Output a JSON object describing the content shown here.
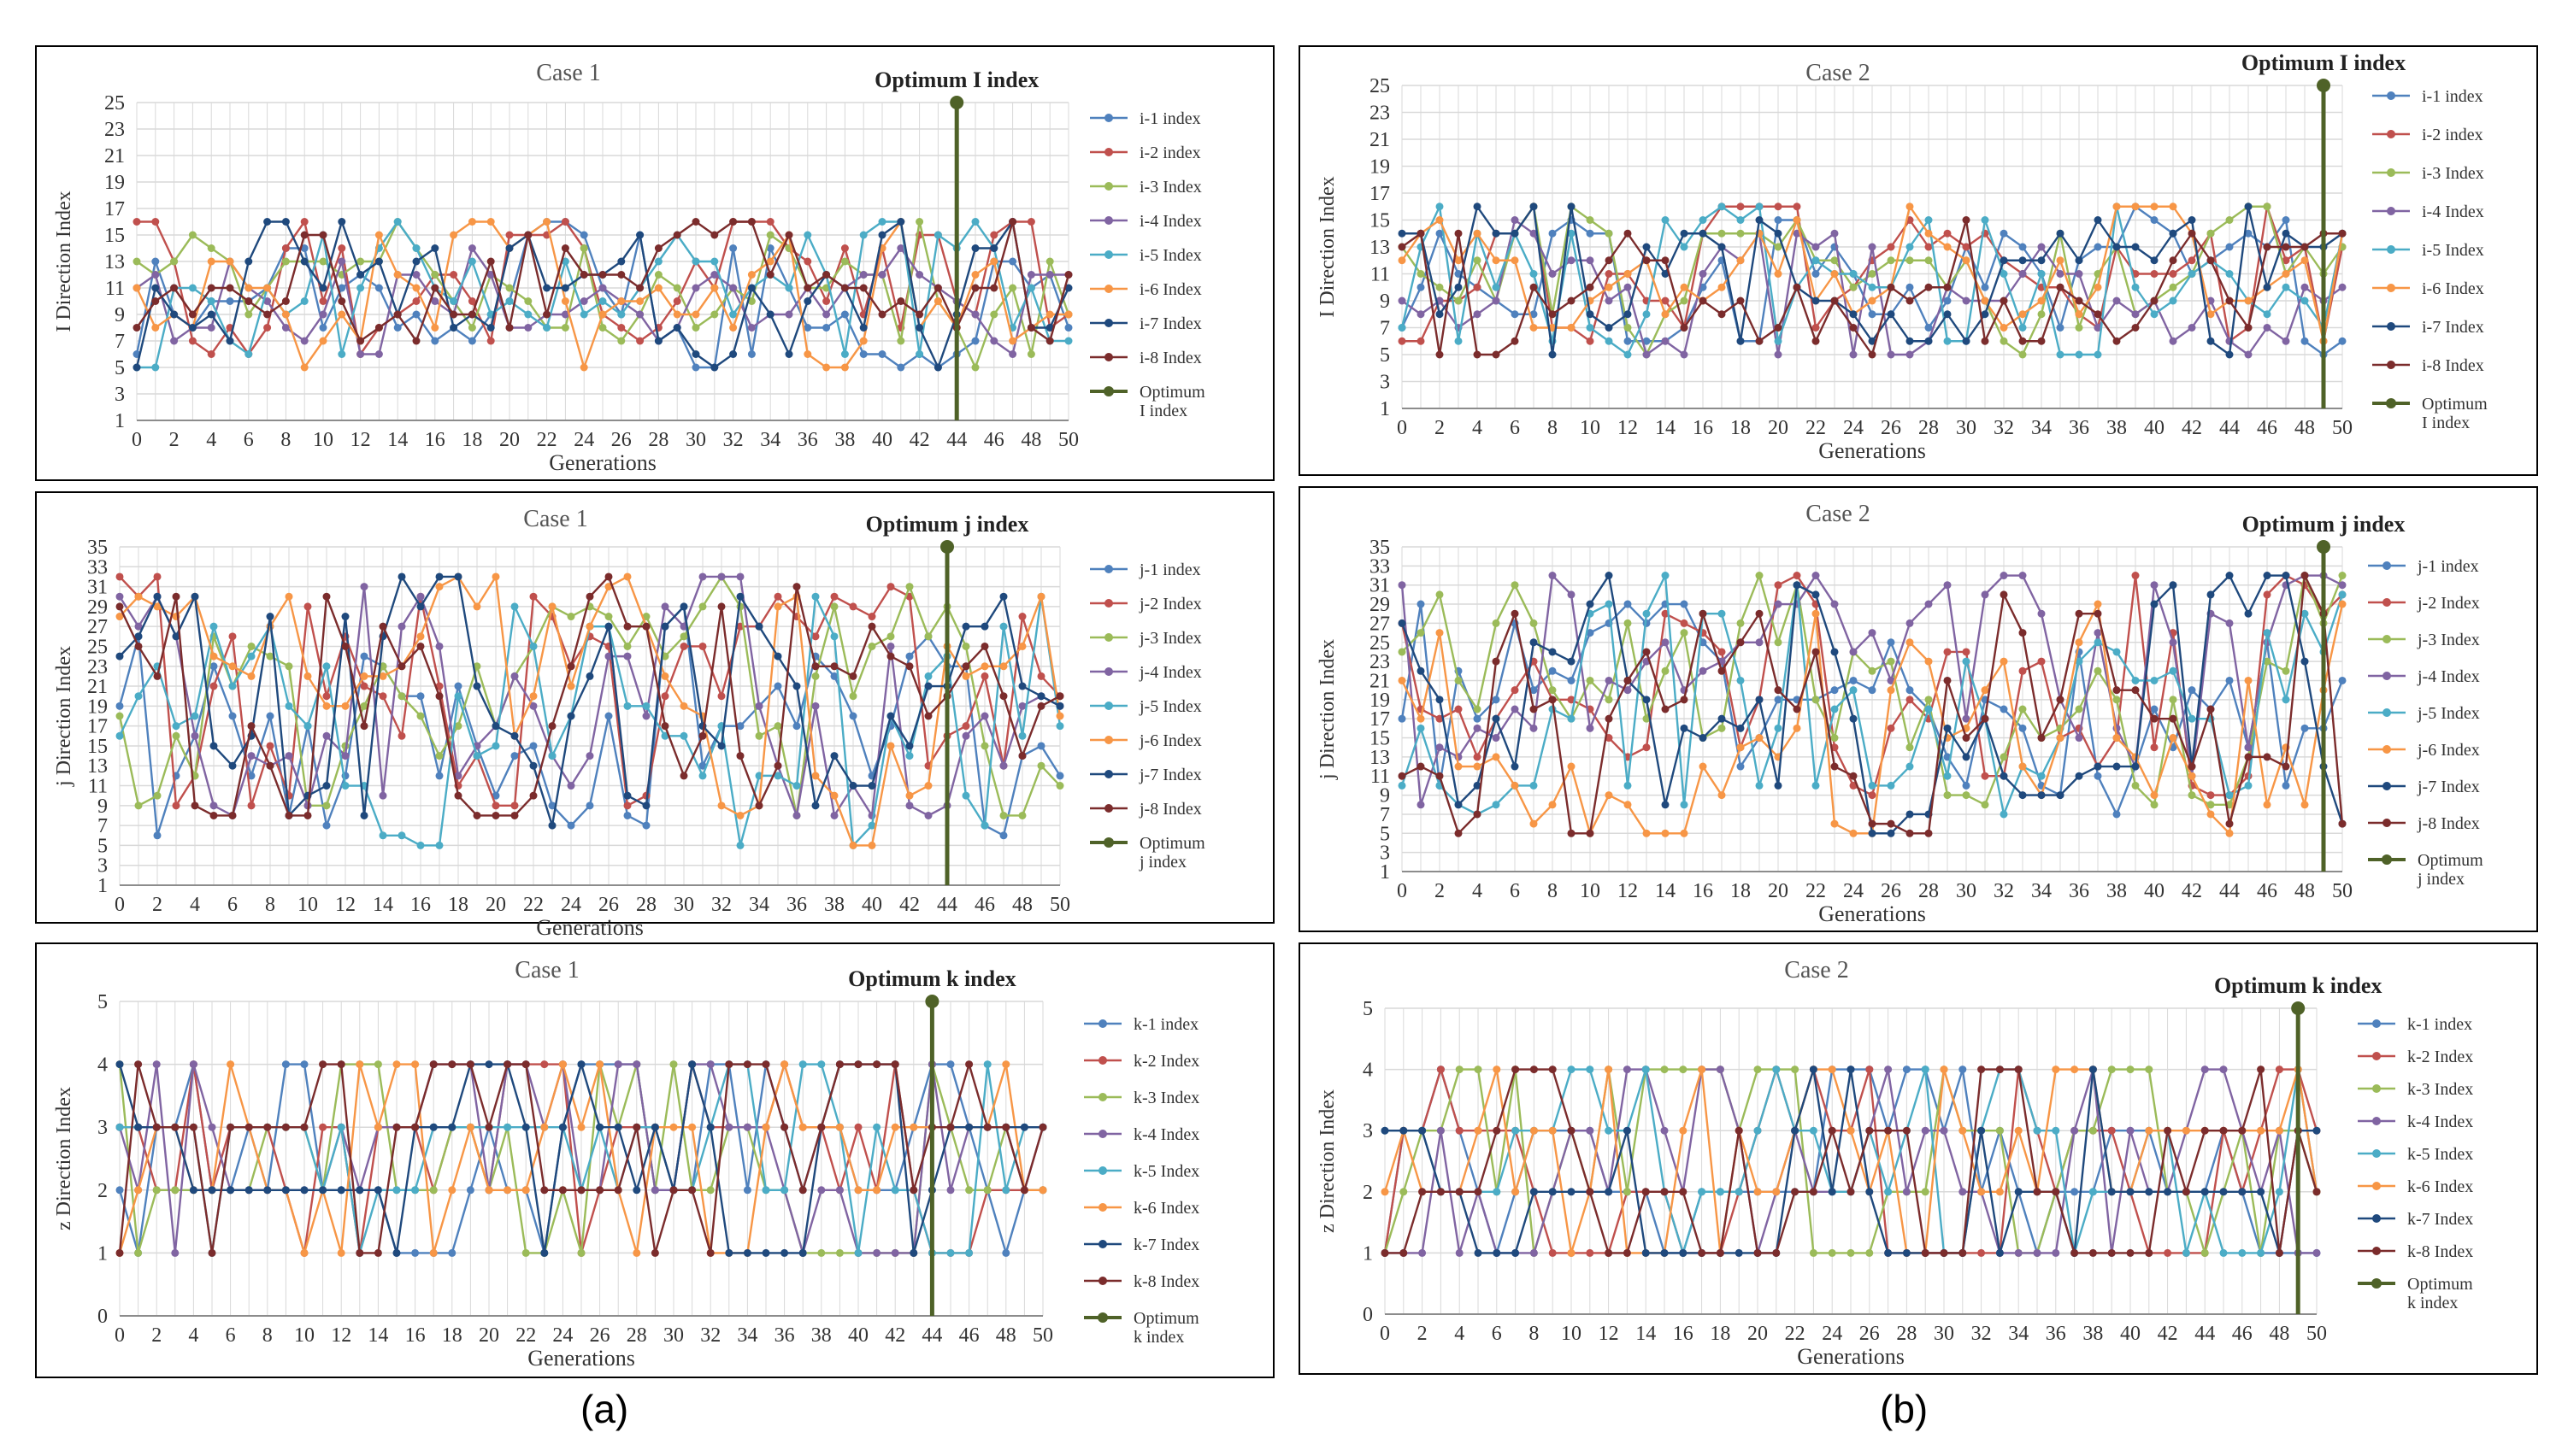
{
  "figure": {
    "sublabels": [
      "(a)",
      "(b)"
    ]
  },
  "colors": {
    "series": [
      "#4f81bd",
      "#c0504d",
      "#9bbb59",
      "#8064a2",
      "#4bacc6",
      "#f79646",
      "#1f497d",
      "#7b2c2c"
    ],
    "optimum": "#4f6228",
    "grid": "#d9d9d9",
    "frame": "#000000"
  },
  "chart_data": [
    {
      "type": "line",
      "panel": "a-i",
      "title": "Case 1",
      "xlabel": "Generations",
      "ylabel": "I Direction Index",
      "xlim": [
        0,
        50
      ],
      "ylim": [
        1,
        25
      ],
      "yticks": [
        1,
        3,
        5,
        7,
        9,
        11,
        13,
        15,
        17,
        19,
        21,
        23,
        25
      ],
      "xticks": [
        0,
        2,
        4,
        6,
        8,
        10,
        12,
        14,
        16,
        18,
        20,
        22,
        24,
        26,
        28,
        30,
        32,
        34,
        36,
        38,
        40,
        42,
        44,
        46,
        48,
        50
      ],
      "optimum": {
        "x": 44,
        "label": "Optimum I index",
        "legend": "Optimum I index"
      },
      "series_names": [
        "i-1 index",
        "i-2 index",
        "i-3 Index",
        "i-4 Index",
        "i-5 Index",
        "i-6 Index",
        "i-7 Index",
        "i-8 Index"
      ],
      "series_seeds": [
        11,
        23,
        37,
        41,
        53,
        67,
        71,
        83
      ],
      "series_ranges": [
        [
          5,
          16
        ],
        [
          6,
          16
        ],
        [
          5,
          16
        ],
        [
          5,
          15
        ],
        [
          5,
          16
        ],
        [
          5,
          16
        ],
        [
          5,
          16
        ],
        [
          7,
          16
        ]
      ]
    },
    {
      "type": "line",
      "panel": "a-j",
      "title": "Case 1",
      "xlabel": "Generations",
      "ylabel": "j Direction Index",
      "xlim": [
        0,
        50
      ],
      "ylim": [
        1,
        35
      ],
      "yticks": [
        1,
        3,
        5,
        7,
        9,
        11,
        13,
        15,
        17,
        19,
        21,
        23,
        25,
        27,
        29,
        31,
        33,
        35
      ],
      "xticks": [
        0,
        2,
        4,
        6,
        8,
        10,
        12,
        14,
        16,
        18,
        20,
        22,
        24,
        26,
        28,
        30,
        32,
        34,
        36,
        38,
        40,
        42,
        44,
        46,
        48,
        50
      ],
      "optimum": {
        "x": 44,
        "label": "Optimum j index",
        "legend": "Optimum j index"
      },
      "series_names": [
        "j-1 index",
        "j-2 Index",
        "j-3 Index",
        "j-4 Index",
        "j-5 Index",
        "j-6 Index",
        "j-7 Index",
        "j-8 Index"
      ],
      "series_seeds": [
        13,
        29,
        31,
        43,
        59,
        61,
        73,
        89
      ],
      "series_ranges": [
        [
          5,
          29
        ],
        [
          9,
          32
        ],
        [
          8,
          32
        ],
        [
          8,
          32
        ],
        [
          5,
          31
        ],
        [
          5,
          32
        ],
        [
          5,
          32
        ],
        [
          8,
          32
        ]
      ]
    },
    {
      "type": "line",
      "panel": "a-k",
      "title": "Case 1",
      "xlabel": "Generations",
      "ylabel": "z Direction Index",
      "xlim": [
        0,
        50
      ],
      "ylim": [
        0,
        5
      ],
      "yticks": [
        0,
        1,
        2,
        3,
        4,
        5
      ],
      "xticks": [
        0,
        2,
        4,
        6,
        8,
        10,
        12,
        14,
        16,
        18,
        20,
        22,
        24,
        26,
        28,
        30,
        32,
        34,
        36,
        38,
        40,
        42,
        44,
        46,
        48,
        50
      ],
      "optimum": {
        "x": 44,
        "label": "Optimum k index",
        "legend": "Optimum k index"
      },
      "series_names": [
        "k-1 index",
        "k-2 Index",
        "k-3 Index",
        "k-4 Index",
        "k-5 Index",
        "k-6 Index",
        "k-7 Index",
        "k-8 Index"
      ],
      "series_seeds": [
        17,
        19,
        47,
        79,
        97,
        101,
        103,
        107
      ],
      "series_ranges": [
        [
          1,
          4
        ],
        [
          1,
          4
        ],
        [
          1,
          4
        ],
        [
          1,
          4
        ],
        [
          1,
          4
        ],
        [
          1,
          4
        ],
        [
          1,
          4
        ],
        [
          1,
          4
        ]
      ]
    },
    {
      "type": "line",
      "panel": "b-i",
      "title": "Case 2",
      "xlabel": "Generations",
      "ylabel": "I Direction Index",
      "xlim": [
        0,
        50
      ],
      "ylim": [
        1,
        25
      ],
      "yticks": [
        1,
        3,
        5,
        7,
        9,
        11,
        13,
        15,
        17,
        19,
        21,
        23,
        25
      ],
      "xticks": [
        0,
        2,
        4,
        6,
        8,
        10,
        12,
        14,
        16,
        18,
        20,
        22,
        24,
        26,
        28,
        30,
        32,
        34,
        36,
        38,
        40,
        42,
        44,
        46,
        48,
        50
      ],
      "optimum": {
        "x": 49,
        "label": "Optimum I index",
        "legend": "Optimum I index"
      },
      "series_names": [
        "i-1 index",
        "i-2 index",
        "i-3 Index",
        "i-4 Index",
        "i-5 Index",
        "i-6 Index",
        "i-7 Index",
        "i-8 Index"
      ],
      "series_seeds": [
        109,
        113,
        127,
        131,
        137,
        139,
        149,
        151
      ],
      "series_ranges": [
        [
          5,
          16
        ],
        [
          6,
          16
        ],
        [
          5,
          16
        ],
        [
          5,
          15
        ],
        [
          5,
          16
        ],
        [
          5,
          16
        ],
        [
          5,
          16
        ],
        [
          5,
          16
        ]
      ]
    },
    {
      "type": "line",
      "panel": "b-j",
      "title": "Case 2",
      "xlabel": "Generations",
      "ylabel": "j Direction Index",
      "xlim": [
        0,
        50
      ],
      "ylim": [
        1,
        35
      ],
      "yticks": [
        1,
        3,
        5,
        7,
        9,
        11,
        13,
        15,
        17,
        19,
        21,
        23,
        25,
        27,
        29,
        31,
        33,
        35
      ],
      "xticks": [
        0,
        2,
        4,
        6,
        8,
        10,
        12,
        14,
        16,
        18,
        20,
        22,
        24,
        26,
        28,
        30,
        32,
        34,
        36,
        38,
        40,
        42,
        44,
        46,
        48,
        50
      ],
      "optimum": {
        "x": 49,
        "label": "Optimum j index",
        "legend": "Optimum j index"
      },
      "series_names": [
        "j-1 index",
        "j-2 Index",
        "j-3 Index",
        "j-4 Index",
        "j-5 Index",
        "j-6 Index",
        "j-7 Index",
        "j-8 Index"
      ],
      "series_seeds": [
        157,
        163,
        167,
        173,
        179,
        181,
        191,
        193
      ],
      "series_ranges": [
        [
          5,
          29
        ],
        [
          9,
          32
        ],
        [
          8,
          32
        ],
        [
          8,
          32
        ],
        [
          5,
          32
        ],
        [
          5,
          29
        ],
        [
          5,
          32
        ],
        [
          5,
          32
        ]
      ]
    },
    {
      "type": "line",
      "panel": "b-k",
      "title": "Case 2",
      "xlabel": "Generations",
      "ylabel": "z Direction Index",
      "xlim": [
        0,
        50
      ],
      "ylim": [
        0,
        5
      ],
      "yticks": [
        0,
        1,
        2,
        3,
        4,
        5
      ],
      "xticks": [
        0,
        2,
        4,
        6,
        8,
        10,
        12,
        14,
        16,
        18,
        20,
        22,
        24,
        26,
        28,
        30,
        32,
        34,
        36,
        38,
        40,
        42,
        44,
        46,
        48,
        50
      ],
      "optimum": {
        "x": 49,
        "label": "Optimum k index",
        "legend": "Optimum k index"
      },
      "series_names": [
        "k-1 index",
        "k-2 Index",
        "k-3 Index",
        "k-4 Index",
        "k-5 Index",
        "k-6 Index",
        "k-7 Index",
        "k-8 Index"
      ],
      "series_seeds": [
        197,
        199,
        211,
        223,
        227,
        229,
        233,
        239
      ],
      "series_ranges": [
        [
          1,
          4
        ],
        [
          1,
          4
        ],
        [
          1,
          4
        ],
        [
          1,
          4
        ],
        [
          1,
          4
        ],
        [
          1,
          4
        ],
        [
          1,
          4
        ],
        [
          1,
          4
        ]
      ]
    }
  ]
}
